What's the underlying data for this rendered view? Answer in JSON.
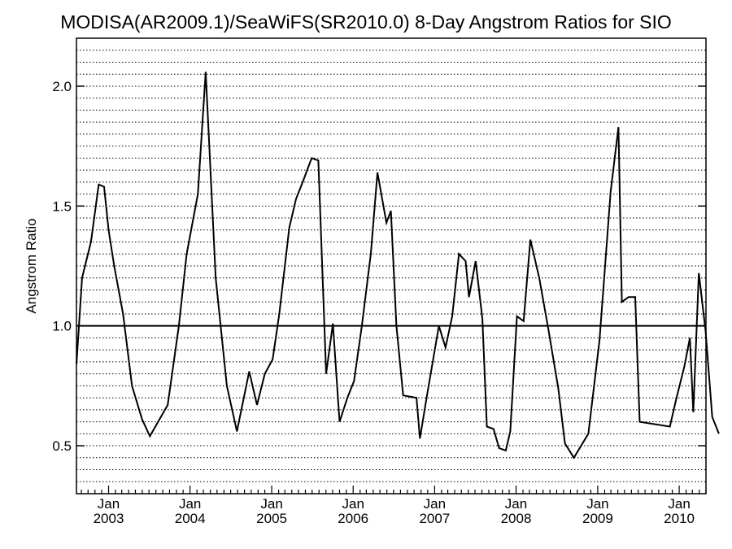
{
  "chart_data": {
    "type": "line",
    "title": "MODISA(AR2009.1)/SeaWiFS(SR2010.0) 8-Day Angstrom Ratios for SIO",
    "xlabel": "",
    "ylabel": "Angstrom Ratio",
    "xlim": [
      "2002-08-10",
      "2010-05-01"
    ],
    "ylim": [
      0.3,
      2.2
    ],
    "y_ticks": [
      "0.5",
      "1.0",
      "1.5",
      "2.0"
    ],
    "y_tick_values": [
      0.5,
      1.0,
      1.5,
      2.0
    ],
    "x_ticks": [
      {
        "month": "Jan",
        "year": "2003",
        "date": "2003-01-01"
      },
      {
        "month": "Jan",
        "year": "2004",
        "date": "2004-01-01"
      },
      {
        "month": "Jan",
        "year": "2005",
        "date": "2005-01-01"
      },
      {
        "month": "Jan",
        "year": "2006",
        "date": "2006-01-01"
      },
      {
        "month": "Jan",
        "year": "2007",
        "date": "2007-01-01"
      },
      {
        "month": "Jan",
        "year": "2008",
        "date": "2008-01-01"
      },
      {
        "month": "Jan",
        "year": "2009",
        "date": "2009-01-01"
      },
      {
        "month": "Jan",
        "year": "2010",
        "date": "2010-01-01"
      }
    ],
    "grid": "horizontal dotted",
    "reference_line": 1.0,
    "series": [
      {
        "color": "#000000",
        "points": [
          [
            "2002-08-10",
            0.84
          ],
          [
            "2002-09-04",
            1.2
          ],
          [
            "2002-10-14",
            1.35
          ],
          [
            "2002-11-18",
            1.59
          ],
          [
            "2002-12-12",
            1.58
          ],
          [
            "2003-01-01",
            1.4
          ],
          [
            "2003-01-26",
            1.25
          ],
          [
            "2003-03-07",
            1.05
          ],
          [
            "2003-04-16",
            0.75
          ],
          [
            "2003-05-31",
            0.61
          ],
          [
            "2003-07-05",
            0.54
          ],
          [
            "2003-09-23",
            0.67
          ],
          [
            "2003-11-12",
            1.0
          ],
          [
            "2003-12-17",
            1.3
          ],
          [
            "2004-02-05",
            1.55
          ],
          [
            "2004-03-11",
            2.06
          ],
          [
            "2004-04-25",
            1.2
          ],
          [
            "2004-06-14",
            0.75
          ],
          [
            "2004-07-29",
            0.56
          ],
          [
            "2004-09-22",
            0.81
          ],
          [
            "2004-10-27",
            0.67
          ],
          [
            "2004-12-01",
            0.8
          ],
          [
            "2005-01-05",
            0.86
          ],
          [
            "2005-02-04",
            1.05
          ],
          [
            "2005-03-21",
            1.41
          ],
          [
            "2005-04-20",
            1.53
          ],
          [
            "2005-05-20",
            1.6
          ],
          [
            "2005-06-29",
            1.7
          ],
          [
            "2005-07-29",
            1.69
          ],
          [
            "2005-09-02",
            0.8
          ],
          [
            "2005-10-02",
            1.01
          ],
          [
            "2005-11-01",
            0.6
          ],
          [
            "2005-12-06",
            0.7
          ],
          [
            "2006-01-05",
            0.77
          ],
          [
            "2006-02-09",
            1.0
          ],
          [
            "2006-03-21",
            1.3
          ],
          [
            "2006-04-20",
            1.64
          ],
          [
            "2006-05-30",
            1.43
          ],
          [
            "2006-06-19",
            1.48
          ],
          [
            "2006-07-14",
            1.0
          ],
          [
            "2006-08-13",
            0.71
          ],
          [
            "2006-10-12",
            0.7
          ],
          [
            "2006-10-27",
            0.53
          ],
          [
            "2006-11-26",
            0.7
          ],
          [
            "2007-01-20",
            1.0
          ],
          [
            "2007-02-19",
            0.91
          ],
          [
            "2007-03-21",
            1.04
          ],
          [
            "2007-04-20",
            1.3
          ],
          [
            "2007-05-20",
            1.27
          ],
          [
            "2007-06-04",
            1.12
          ],
          [
            "2007-07-04",
            1.27
          ],
          [
            "2007-08-03",
            1.03
          ],
          [
            "2007-08-23",
            0.58
          ],
          [
            "2007-09-22",
            0.57
          ],
          [
            "2007-10-17",
            0.49
          ],
          [
            "2007-11-16",
            0.48
          ],
          [
            "2007-12-06",
            0.56
          ],
          [
            "2008-01-05",
            1.04
          ],
          [
            "2008-02-04",
            1.02
          ],
          [
            "2008-03-05",
            1.36
          ],
          [
            "2008-04-14",
            1.2
          ],
          [
            "2008-05-24",
            0.99
          ],
          [
            "2008-07-08",
            0.74
          ],
          [
            "2008-08-07",
            0.51
          ],
          [
            "2008-09-16",
            0.45
          ],
          [
            "2008-11-20",
            0.55
          ],
          [
            "2009-01-09",
            0.94
          ],
          [
            "2009-02-28",
            1.56
          ],
          [
            "2009-04-04",
            1.83
          ],
          [
            "2009-04-19",
            1.1
          ],
          [
            "2009-05-19",
            1.12
          ],
          [
            "2009-06-18",
            1.12
          ],
          [
            "2009-07-08",
            0.6
          ],
          [
            "2009-11-20",
            0.58
          ],
          [
            "2009-12-20",
            0.7
          ],
          [
            "2010-01-24",
            0.83
          ],
          [
            "2010-02-18",
            0.95
          ],
          [
            "2010-03-05",
            0.64
          ],
          [
            "2010-03-30",
            1.22
          ],
          [
            "2010-04-29",
            0.98
          ],
          [
            "2010-05-29",
            0.62
          ],
          [
            "2010-06-28",
            0.55
          ]
        ]
      }
    ]
  }
}
